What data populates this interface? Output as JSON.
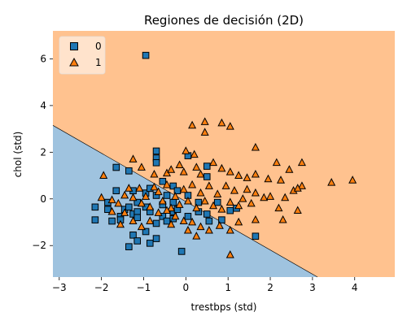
{
  "chart_data": {
    "type": "scatter",
    "title": "Regiones de decisión (2D)",
    "xlabel": "trestbps (std)",
    "ylabel": "chol (std)",
    "xlim": [
      -3.15,
      4.95
    ],
    "ylim": [
      -3.35,
      7.2
    ],
    "xticks": [
      -3,
      -2,
      -1,
      0,
      1,
      2,
      3,
      4
    ],
    "yticks": [
      -2,
      0,
      2,
      4,
      6
    ],
    "grid": false,
    "legend_position": "top-left",
    "boundary": {
      "x": [
        -3.15,
        3.12
      ],
      "y": [
        3.15,
        -3.35
      ]
    },
    "regions": [
      {
        "class": "0",
        "side": "below boundary",
        "color": "#9fc3df"
      },
      {
        "class": "1",
        "side": "above boundary",
        "color": "#ffc28f"
      }
    ],
    "series": [
      {
        "name": "0",
        "marker": "square",
        "color": "#1f77b4",
        "points": [
          [
            -0.95,
            6.15
          ],
          [
            -2.15,
            -0.35
          ],
          [
            -2.15,
            -0.9
          ],
          [
            -1.85,
            -0.15
          ],
          [
            -1.85,
            -0.45
          ],
          [
            -1.75,
            -0.95
          ],
          [
            -1.65,
            1.35
          ],
          [
            -1.65,
            0.35
          ],
          [
            -1.55,
            -0.75
          ],
          [
            -1.55,
            -0.9
          ],
          [
            -1.45,
            -0.45
          ],
          [
            -1.35,
            1.2
          ],
          [
            -1.35,
            -0.35
          ],
          [
            -1.35,
            -2.05
          ],
          [
            -1.25,
            0.35
          ],
          [
            -1.25,
            -0.65
          ],
          [
            -1.25,
            -1.55
          ],
          [
            -1.15,
            -0.15
          ],
          [
            -1.15,
            -0.55
          ],
          [
            -1.15,
            -0.8
          ],
          [
            -1.15,
            -1.8
          ],
          [
            -0.95,
            0.25
          ],
          [
            -0.95,
            -0.35
          ],
          [
            -0.95,
            -1.4
          ],
          [
            -0.85,
            0.45
          ],
          [
            -0.85,
            -0.55
          ],
          [
            -0.85,
            -1.9
          ],
          [
            -0.7,
            2.05
          ],
          [
            -0.7,
            1.75
          ],
          [
            -0.7,
            1.55
          ],
          [
            -0.7,
            0.15
          ],
          [
            -0.7,
            -1.05
          ],
          [
            -0.7,
            -1.7
          ],
          [
            -0.55,
            0.75
          ],
          [
            -0.55,
            -0.25
          ],
          [
            -0.55,
            -0.75
          ],
          [
            -0.45,
            0.15
          ],
          [
            -0.45,
            -0.95
          ],
          [
            -0.3,
            0.55
          ],
          [
            -0.3,
            -0.15
          ],
          [
            -0.3,
            -0.55
          ],
          [
            -0.3,
            -0.85
          ],
          [
            -0.2,
            0.35
          ],
          [
            -0.2,
            -0.45
          ],
          [
            -0.1,
            -2.25
          ],
          [
            0.05,
            1.85
          ],
          [
            0.05,
            0.15
          ],
          [
            0.05,
            -0.75
          ],
          [
            0.3,
            -0.15
          ],
          [
            0.3,
            -0.55
          ],
          [
            0.5,
            1.4
          ],
          [
            0.5,
            0.95
          ],
          [
            0.5,
            -0.65
          ],
          [
            0.55,
            -0.95
          ],
          [
            0.75,
            -0.15
          ],
          [
            0.85,
            -0.9
          ],
          [
            1.05,
            -0.5
          ],
          [
            1.2,
            -0.4
          ],
          [
            1.65,
            -1.6
          ]
        ]
      },
      {
        "name": "1",
        "marker": "triangle",
        "color": "#ff7f0e",
        "points": [
          [
            0.15,
            3.15
          ],
          [
            0.45,
            2.85
          ],
          [
            0.45,
            3.3
          ],
          [
            0.85,
            3.25
          ],
          [
            1.05,
            3.1
          ],
          [
            1.65,
            2.2
          ],
          [
            0.0,
            2.05
          ],
          [
            0.2,
            1.9
          ],
          [
            -1.95,
            1.0
          ],
          [
            -1.25,
            1.7
          ],
          [
            -1.05,
            1.35
          ],
          [
            -0.75,
            1.05
          ],
          [
            -0.45,
            1.1
          ],
          [
            -0.35,
            1.25
          ],
          [
            -0.15,
            1.45
          ],
          [
            -0.05,
            1.15
          ],
          [
            0.25,
            1.35
          ],
          [
            0.35,
            1.05
          ],
          [
            0.65,
            1.55
          ],
          [
            0.85,
            1.3
          ],
          [
            1.05,
            1.15
          ],
          [
            1.25,
            1.0
          ],
          [
            1.45,
            0.9
          ],
          [
            1.65,
            1.05
          ],
          [
            1.95,
            0.85
          ],
          [
            2.25,
            0.8
          ],
          [
            2.45,
            1.25
          ],
          [
            2.75,
            1.55
          ],
          [
            2.15,
            1.55
          ],
          [
            2.75,
            0.55
          ],
          [
            3.45,
            0.7
          ],
          [
            3.95,
            0.8
          ],
          [
            2.35,
            0.05
          ],
          [
            2.55,
            0.35
          ],
          [
            2.65,
            0.45
          ],
          [
            -2.0,
            0.05
          ],
          [
            -1.75,
            -0.05
          ],
          [
            -1.6,
            -0.2
          ],
          [
            -1.45,
            0.15
          ],
          [
            -1.35,
            0.45
          ],
          [
            -1.25,
            0.05
          ],
          [
            -1.1,
            0.45
          ],
          [
            -1.05,
            -0.2
          ],
          [
            -0.95,
            0.1
          ],
          [
            -0.85,
            -0.35
          ],
          [
            -0.75,
            0.5
          ],
          [
            -0.65,
            0.3
          ],
          [
            -0.55,
            -0.1
          ],
          [
            -0.45,
            0.6
          ],
          [
            -0.35,
            -0.4
          ],
          [
            -0.25,
            0.1
          ],
          [
            -0.15,
            -0.25
          ],
          [
            -0.05,
            0.4
          ],
          [
            0.05,
            -0.1
          ],
          [
            0.15,
            0.6
          ],
          [
            0.25,
            -0.4
          ],
          [
            0.35,
            0.25
          ],
          [
            0.45,
            -0.1
          ],
          [
            0.55,
            0.55
          ],
          [
            0.65,
            -0.3
          ],
          [
            0.75,
            0.2
          ],
          [
            0.85,
            -0.45
          ],
          [
            0.95,
            0.55
          ],
          [
            1.05,
            -0.15
          ],
          [
            1.15,
            0.35
          ],
          [
            1.25,
            -0.3
          ],
          [
            1.35,
            0.0
          ],
          [
            1.45,
            0.4
          ],
          [
            1.55,
            -0.2
          ],
          [
            1.65,
            0.25
          ],
          [
            1.85,
            0.05
          ],
          [
            2.0,
            0.1
          ],
          [
            2.2,
            -0.4
          ],
          [
            2.3,
            -0.9
          ],
          [
            2.65,
            -0.5
          ],
          [
            1.65,
            -0.9
          ],
          [
            1.25,
            -1.0
          ],
          [
            1.05,
            -1.35
          ],
          [
            1.05,
            -2.4
          ],
          [
            0.8,
            -1.15
          ],
          [
            0.55,
            -1.35
          ],
          [
            0.35,
            -1.2
          ],
          [
            0.25,
            -1.6
          ],
          [
            0.15,
            -1.0
          ],
          [
            -0.05,
            -0.95
          ],
          [
            -0.25,
            -0.75
          ],
          [
            -0.45,
            -0.5
          ],
          [
            -0.65,
            -0.6
          ],
          [
            -0.85,
            -0.95
          ],
          [
            -1.05,
            -1.2
          ],
          [
            -1.25,
            -0.95
          ],
          [
            -1.45,
            -0.6
          ],
          [
            -1.55,
            -1.1
          ],
          [
            -1.75,
            -0.55
          ],
          [
            -0.35,
            -1.1
          ],
          [
            0.05,
            -1.35
          ]
        ]
      }
    ]
  }
}
